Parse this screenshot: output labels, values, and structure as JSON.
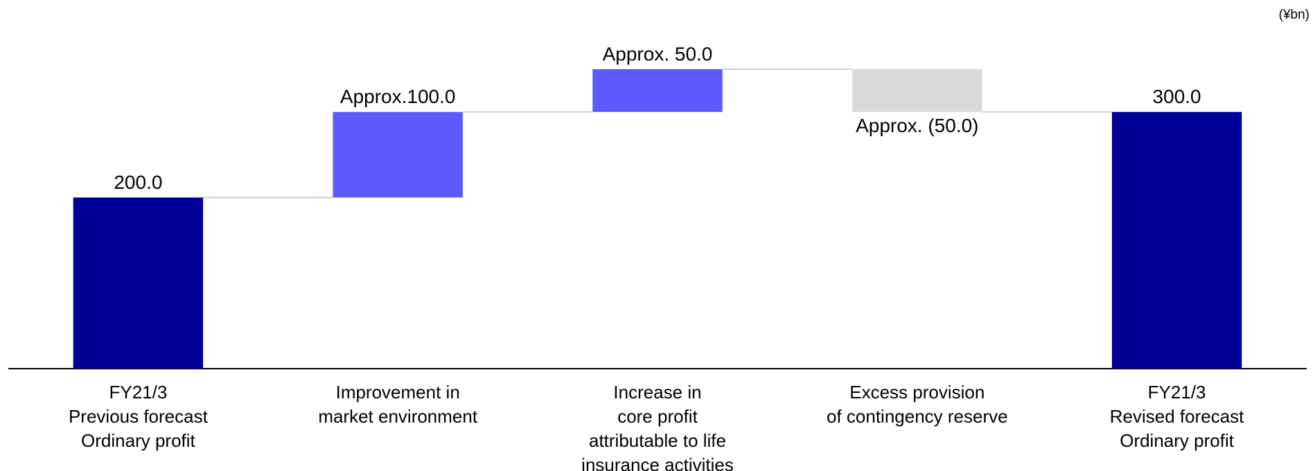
{
  "chart_data": {
    "type": "waterfall",
    "unit": "(¥bn)",
    "categories": [
      [
        "FY21/3",
        "Previous forecast",
        "Ordinary profit"
      ],
      [
        "Improvement in",
        "market environment"
      ],
      [
        "Increase in",
        "core profit",
        "attributable to life",
        "insurance activities"
      ],
      [
        "Excess provision",
        "of contingency reserve"
      ],
      [
        "FY21/3",
        "Revised forecast",
        "Ordinary profit"
      ]
    ],
    "measures": [
      "total",
      "relative",
      "relative",
      "relative",
      "total"
    ],
    "values": [
      200,
      100,
      50,
      -50,
      300
    ],
    "value_labels": [
      "200.0",
      "Approx.100.0",
      "Approx. 50.0",
      "Approx. (50.0)",
      "300.0"
    ],
    "colors": {
      "total": "#000099",
      "increase": "#5b5bff",
      "decrease": "#d9d9d9"
    }
  }
}
